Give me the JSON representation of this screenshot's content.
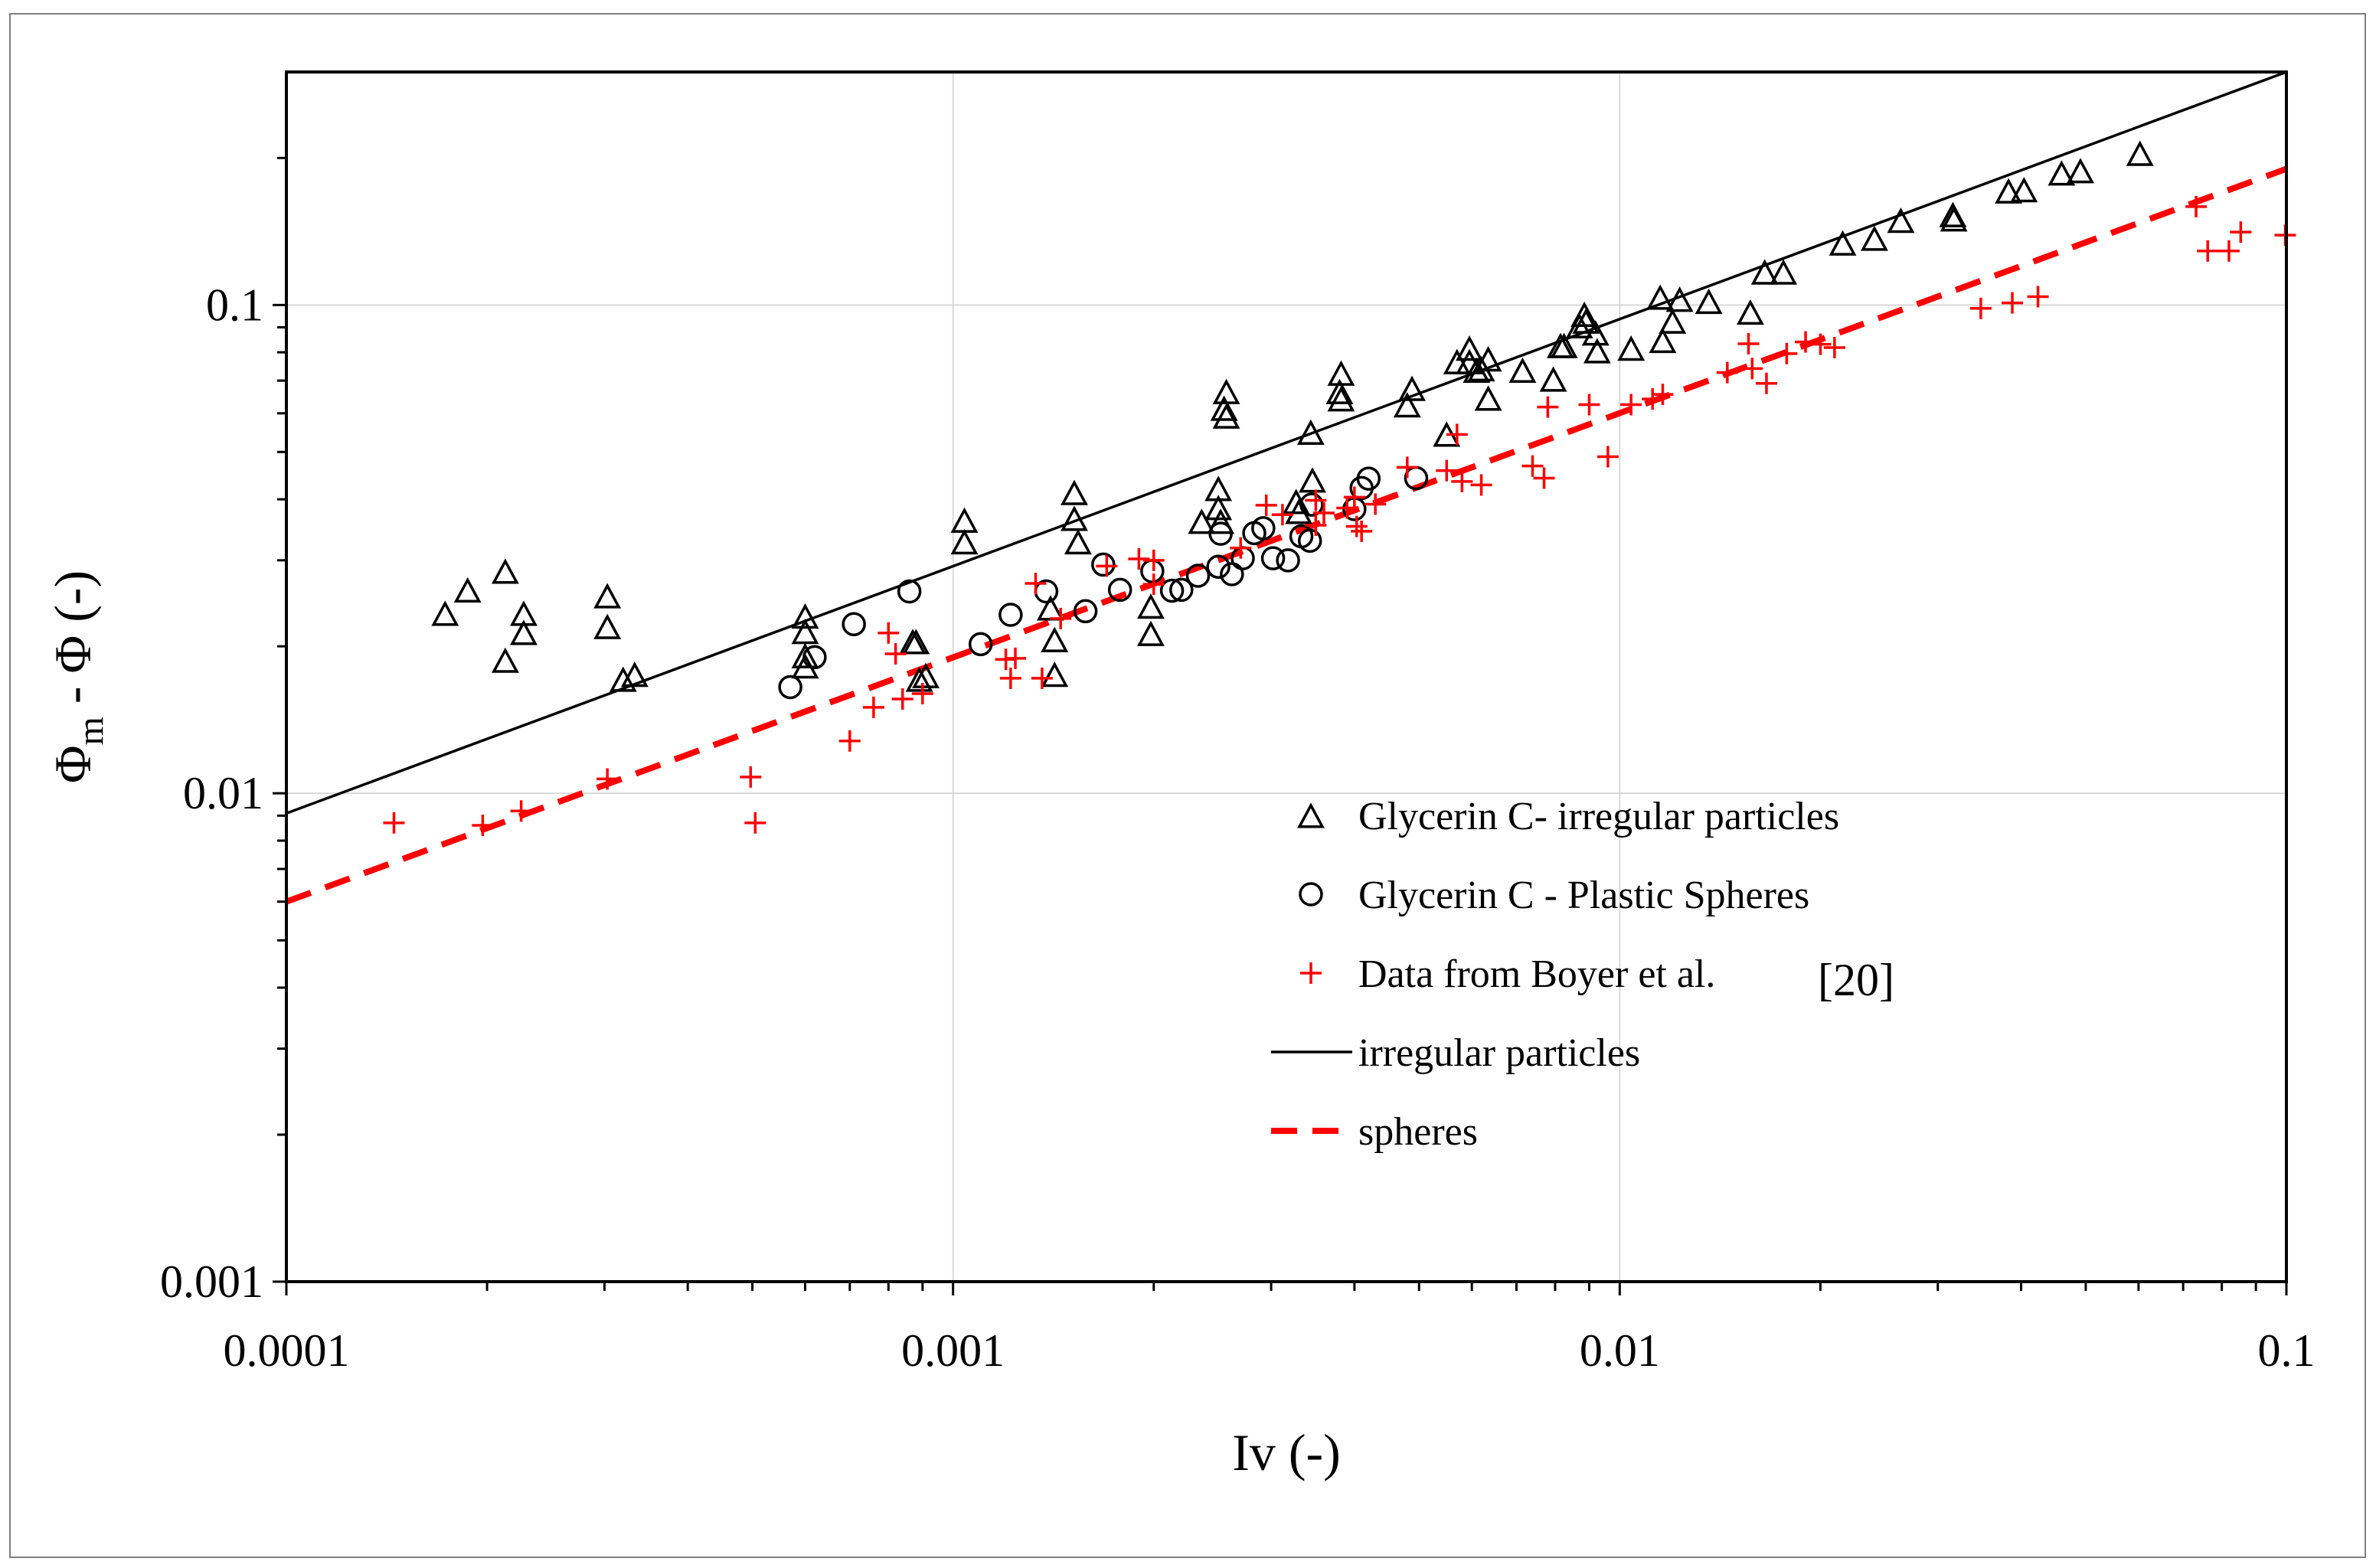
{
  "chart_data": {
    "type": "scatter",
    "title": "",
    "xlabel": "Iv (-)",
    "ylabel_main": "Φ",
    "ylabel_sub": "m",
    "ylabel_rest": " - Φ (-)",
    "xscale": "log",
    "yscale": "log",
    "xlim": [
      0.0001,
      0.1
    ],
    "ylim": [
      0.001,
      0.3
    ],
    "x_ticks": [
      0.0001,
      0.001,
      0.01,
      0.1
    ],
    "x_tick_labels": [
      "0.0001",
      "0.001",
      "0.01",
      "0.1"
    ],
    "y_ticks": [
      0.001,
      0.01,
      0.1
    ],
    "y_tick_labels": [
      "0.001",
      "0.01",
      "0.1"
    ],
    "grid": true,
    "legend_position": "right",
    "series": [
      {
        "name": "Glycerin C- irregular particles",
        "marker": "triangle",
        "color": "#000000",
        "points": [
          [
            0.000173,
            0.0232
          ],
          [
            0.000187,
            0.0259
          ],
          [
            0.000213,
            0.0283
          ],
          [
            0.000213,
            0.0186
          ],
          [
            0.000227,
            0.0232
          ],
          [
            0.000227,
            0.0212
          ],
          [
            0.000303,
            0.0252
          ],
          [
            0.000303,
            0.0218
          ],
          [
            0.00032,
            0.017
          ],
          [
            0.000333,
            0.0174
          ],
          [
            0.0006,
            0.0229
          ],
          [
            0.0006,
            0.0213
          ],
          [
            0.0006,
            0.019
          ],
          [
            0.0006,
            0.0181
          ],
          [
            0.00087,
            0.0203
          ],
          [
            0.00088,
            0.0203
          ],
          [
            0.00089,
            0.017
          ],
          [
            0.00091,
            0.0173
          ],
          [
            0.00104,
            0.036
          ],
          [
            0.00104,
            0.0325
          ],
          [
            0.0014,
            0.0238
          ],
          [
            0.00142,
            0.0205
          ],
          [
            0.00142,
            0.0174
          ],
          [
            0.00152,
            0.041
          ],
          [
            0.00152,
            0.0363
          ],
          [
            0.00154,
            0.0325
          ],
          [
            0.00198,
            0.024
          ],
          [
            0.00198,
            0.0211
          ],
          [
            0.00236,
            0.0358
          ],
          [
            0.0025,
            0.0418
          ],
          [
            0.0025,
            0.0382
          ],
          [
            0.00252,
            0.0358
          ],
          [
            0.00255,
            0.061
          ],
          [
            0.00257,
            0.066
          ],
          [
            0.00257,
            0.0588
          ],
          [
            0.00327,
            0.0393
          ],
          [
            0.0033,
            0.0375
          ],
          [
            0.00344,
            0.0545
          ],
          [
            0.00346,
            0.0435
          ],
          [
            0.0038,
            0.066
          ],
          [
            0.00382,
            0.072
          ],
          [
            0.00382,
            0.0638
          ],
          [
            0.0048,
            0.062
          ],
          [
            0.00488,
            0.067
          ],
          [
            0.0055,
            0.054
          ],
          [
            0.0057,
            0.076
          ],
          [
            0.00595,
            0.081
          ],
          [
            0.00595,
            0.076
          ],
          [
            0.0061,
            0.073
          ],
          [
            0.0062,
            0.0735
          ],
          [
            0.00635,
            0.064
          ],
          [
            0.00635,
            0.077
          ],
          [
            0.00715,
            0.073
          ],
          [
            0.00795,
            0.07
          ],
          [
            0.00815,
            0.082
          ],
          [
            0.00825,
            0.082
          ],
          [
            0.0087,
            0.09
          ],
          [
            0.00885,
            0.095
          ],
          [
            0.0089,
            0.092
          ],
          [
            0.0092,
            0.087
          ],
          [
            0.00925,
            0.08
          ],
          [
            0.0104,
            0.081
          ],
          [
            0.0115,
            0.103
          ],
          [
            0.0116,
            0.084
          ],
          [
            0.012,
            0.092
          ],
          [
            0.0123,
            0.102
          ],
          [
            0.0136,
            0.101
          ],
          [
            0.0157,
            0.096
          ],
          [
            0.0165,
            0.116
          ],
          [
            0.0176,
            0.116
          ],
          [
            0.0216,
            0.133
          ],
          [
            0.0241,
            0.136
          ],
          [
            0.0264,
            0.148
          ],
          [
            0.0316,
            0.152
          ],
          [
            0.0317,
            0.149
          ],
          [
            0.0383,
            0.17
          ],
          [
            0.0404,
            0.171
          ],
          [
            0.046,
            0.185
          ],
          [
            0.0491,
            0.187
          ],
          [
            0.0603,
            0.203
          ]
        ]
      },
      {
        "name": "Glycerin C - Plastic Spheres",
        "marker": "circle",
        "color": "#000000",
        "points": [
          [
            0.00057,
            0.0165
          ],
          [
            0.00062,
            0.019
          ],
          [
            0.00071,
            0.0222
          ],
          [
            0.00086,
            0.0259
          ],
          [
            0.0011,
            0.0202
          ],
          [
            0.00122,
            0.0232
          ],
          [
            0.00138,
            0.0259
          ],
          [
            0.00158,
            0.0236
          ],
          [
            0.00168,
            0.0294
          ],
          [
            0.00178,
            0.0261
          ],
          [
            0.00199,
            0.0285
          ],
          [
            0.00213,
            0.026
          ],
          [
            0.0022,
            0.0261
          ],
          [
            0.00233,
            0.0279
          ],
          [
            0.0025,
            0.0291
          ],
          [
            0.00252,
            0.034
          ],
          [
            0.00262,
            0.0281
          ],
          [
            0.00272,
            0.0303
          ],
          [
            0.00283,
            0.0341
          ],
          [
            0.00292,
            0.0349
          ],
          [
            0.00302,
            0.0303
          ],
          [
            0.00318,
            0.03
          ],
          [
            0.00333,
            0.0336
          ],
          [
            0.00343,
            0.0329
          ],
          [
            0.00345,
            0.039
          ],
          [
            0.004,
            0.0382
          ],
          [
            0.0041,
            0.0422
          ],
          [
            0.0042,
            0.0441
          ],
          [
            0.00495,
            0.0442
          ]
        ]
      },
      {
        "name": "Data from Boyer et al.",
        "ref": "[20]",
        "marker": "plus",
        "color": "#ff0000",
        "points": [
          [
            0.000145,
            0.0087
          ],
          [
            0.000197,
            0.0086
          ],
          [
            0.000225,
            0.0092
          ],
          [
            0.000303,
            0.0107
          ],
          [
            0.000497,
            0.0108
          ],
          [
            0.000505,
            0.0087
          ],
          [
            0.0007,
            0.0128
          ],
          [
            0.00076,
            0.015
          ],
          [
            0.0008,
            0.0213
          ],
          [
            0.00082,
            0.0193
          ],
          [
            0.00084,
            0.0156
          ],
          [
            0.0009,
            0.016
          ],
          [
            0.0012,
            0.0188
          ],
          [
            0.00122,
            0.0172
          ],
          [
            0.00124,
            0.0189
          ],
          [
            0.00133,
            0.0269
          ],
          [
            0.00136,
            0.0172
          ],
          [
            0.00145,
            0.0228
          ],
          [
            0.0017,
            0.0292
          ],
          [
            0.0019,
            0.0302
          ],
          [
            0.002,
            0.03
          ],
          [
            0.002,
            0.0268
          ],
          [
            0.0027,
            0.0318
          ],
          [
            0.00295,
            0.0389
          ],
          [
            0.00312,
            0.0372
          ],
          [
            0.0035,
            0.0354
          ],
          [
            0.0035,
            0.0398
          ],
          [
            0.0036,
            0.0375
          ],
          [
            0.0039,
            0.0384
          ],
          [
            0.004,
            0.0404
          ],
          [
            0.00403,
            0.0352
          ],
          [
            0.0041,
            0.0344
          ],
          [
            0.0043,
            0.0391
          ],
          [
            0.0048,
            0.0465
          ],
          [
            0.0055,
            0.0458
          ],
          [
            0.0057,
            0.0543
          ],
          [
            0.0058,
            0.0435
          ],
          [
            0.0062,
            0.0428
          ],
          [
            0.0074,
            0.0468
          ],
          [
            0.0077,
            0.0442
          ],
          [
            0.0078,
            0.0618
          ],
          [
            0.009,
            0.0625
          ],
          [
            0.0096,
            0.0489
          ],
          [
            0.0104,
            0.0625
          ],
          [
            0.0112,
            0.0642
          ],
          [
            0.0116,
            0.0656
          ],
          [
            0.0145,
            0.0727
          ],
          [
            0.0156,
            0.0833
          ],
          [
            0.0158,
            0.0741
          ],
          [
            0.0166,
            0.0691
          ],
          [
            0.0178,
            0.0795
          ],
          [
            0.019,
            0.084
          ],
          [
            0.02,
            0.0831
          ],
          [
            0.021,
            0.0818
          ],
          [
            0.0348,
            0.0984
          ],
          [
            0.0388,
            0.101
          ],
          [
            0.0424,
            0.104
          ],
          [
            0.0732,
            0.159
          ],
          [
            0.0762,
            0.129
          ],
          [
            0.082,
            0.129
          ],
          [
            0.0854,
            0.141
          ],
          [
            0.0996,
            0.139
          ]
        ]
      }
    ],
    "fit_lines": [
      {
        "name": "irregular particles",
        "style": "solid",
        "color": "#000000",
        "x": [
          0.0001,
          0.1
        ],
        "y": [
          0.0091,
          0.3
        ]
      },
      {
        "name": "spheres",
        "style": "dashed",
        "color": "#ff0000",
        "x": [
          0.0001,
          0.1
        ],
        "y": [
          0.006,
          0.19
        ]
      }
    ],
    "legend": [
      {
        "label": "Glycerin C- irregular particles",
        "marker": "triangle"
      },
      {
        "label": "Glycerin C - Plastic Spheres",
        "marker": "circle"
      },
      {
        "label": "Data from Boyer et al.",
        "marker": "plus"
      },
      {
        "label": "irregular particles",
        "marker": "solid-line"
      },
      {
        "label": "spheres",
        "marker": "dashed-line"
      }
    ],
    "legend_ref": "[20]"
  }
}
